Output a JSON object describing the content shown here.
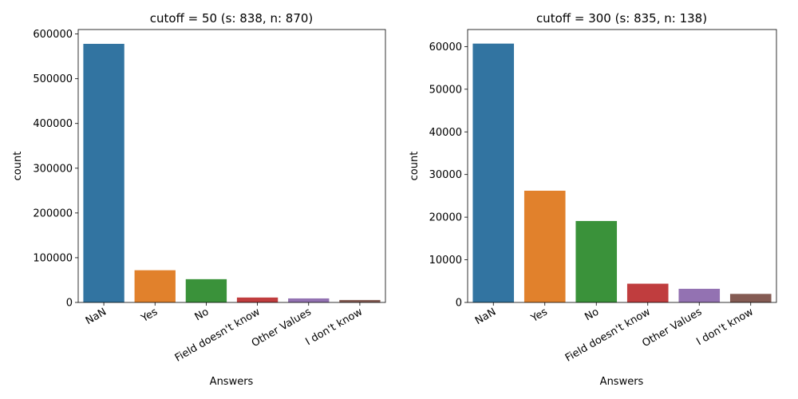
{
  "chart_data": [
    {
      "type": "bar",
      "title": "cutoff = 50 (s: 838, n: 870)",
      "xlabel": "Answers",
      "ylabel": "count",
      "categories": [
        "NaN",
        "Yes",
        "No",
        "Field doesn't know",
        "Other Values",
        "I don't know"
      ],
      "values": [
        578000,
        72000,
        52000,
        11000,
        9000,
        5500
      ],
      "colors": [
        "#3274a1",
        "#e1812c",
        "#3a923a",
        "#c03d3e",
        "#9372b2",
        "#845b53"
      ],
      "ylim": [
        0,
        610000
      ],
      "yticks": [
        0,
        100000,
        200000,
        300000,
        400000,
        500000,
        600000
      ],
      "ytick_labels": [
        "0",
        "100000",
        "200000",
        "300000",
        "400000",
        "500000",
        "600000"
      ],
      "grid": false
    },
    {
      "type": "bar",
      "title": "cutoff = 300 (s: 835, n: 138)",
      "xlabel": "Answers",
      "ylabel": "count",
      "categories": [
        "NaN",
        "Yes",
        "No",
        "Field doesn't know",
        "Other Values",
        "I don't know"
      ],
      "values": [
        60700,
        26200,
        19100,
        4400,
        3200,
        2000
      ],
      "colors": [
        "#3274a1",
        "#e1812c",
        "#3a923a",
        "#c03d3e",
        "#9372b2",
        "#845b53"
      ],
      "ylim": [
        0,
        64000
      ],
      "yticks": [
        0,
        10000,
        20000,
        30000,
        40000,
        50000,
        60000
      ],
      "ytick_labels": [
        "0",
        "10000",
        "20000",
        "30000",
        "40000",
        "50000",
        "60000"
      ],
      "grid": false
    }
  ]
}
